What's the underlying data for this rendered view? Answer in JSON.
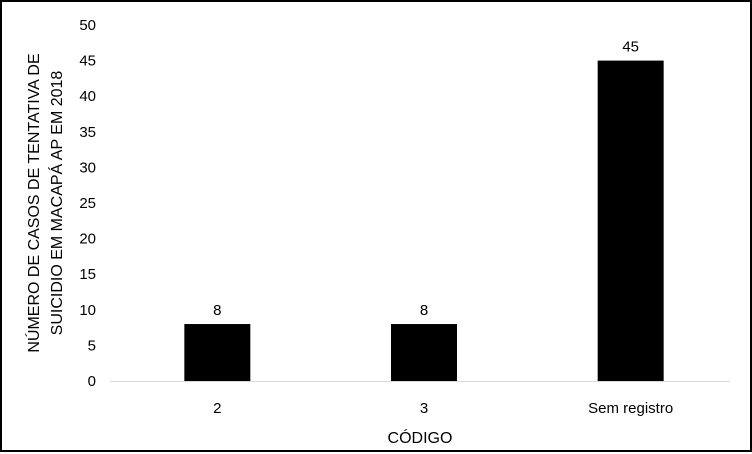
{
  "chart_data": {
    "type": "bar",
    "categories": [
      "2",
      "3",
      "Sem registro"
    ],
    "values": [
      8,
      8,
      45
    ],
    "data_labels": [
      "8",
      "8",
      "45"
    ],
    "title": "",
    "xlabel": "CÓDIGO",
    "ylabel_lines": [
      "NÚMERO DE CASOS DE TENTATIVA DE",
      "SUICIDIO EM MACAPÁ AP EM 2018"
    ],
    "ylim": [
      0,
      50
    ],
    "yticks": [
      0,
      5,
      10,
      15,
      20,
      25,
      30,
      35,
      40,
      45,
      50
    ],
    "grid": false,
    "legend": "none",
    "bar_color": "#000000",
    "axis_color": "#d9d9d9"
  }
}
